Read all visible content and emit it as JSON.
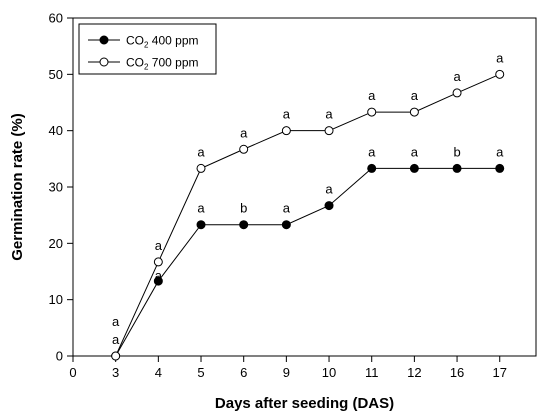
{
  "chart_data": {
    "type": "line",
    "xlabel": "Days after seeding (DAS)",
    "ylabel": "Germination rate (%)",
    "ylim": [
      0,
      60
    ],
    "yticks": [
      0,
      10,
      20,
      30,
      40,
      50,
      60
    ],
    "x_ticks": [
      "0",
      "3",
      "4",
      "5",
      "6",
      "9",
      "10",
      "11",
      "12",
      "16",
      "17"
    ],
    "categories": [
      "3",
      "4",
      "5",
      "6",
      "9",
      "10",
      "11",
      "12",
      "16",
      "17"
    ],
    "legend_position": "top-left",
    "grid": false,
    "series": [
      {
        "name": "CO2 400 ppm",
        "legend_main": "CO",
        "legend_sub": "2",
        "legend_rest": " 400 ppm",
        "marker": "filled-circle",
        "values": [
          0,
          13.3,
          23.3,
          23.3,
          23.3,
          26.7,
          33.3,
          33.3,
          33.3,
          33.3
        ],
        "labels": [
          "a",
          "a",
          "a",
          "b",
          "a",
          "a",
          "a",
          "a",
          "b",
          "a"
        ]
      },
      {
        "name": "CO2 700 ppm",
        "legend_main": "CO",
        "legend_sub": "2",
        "legend_rest": " 700 ppm",
        "marker": "open-circle",
        "values": [
          0,
          16.7,
          33.3,
          36.7,
          40,
          40,
          43.3,
          43.3,
          46.7,
          50
        ],
        "labels": [
          "a",
          "a",
          "a",
          "a",
          "a",
          "a",
          "a",
          "a",
          "a",
          "a"
        ]
      }
    ]
  }
}
